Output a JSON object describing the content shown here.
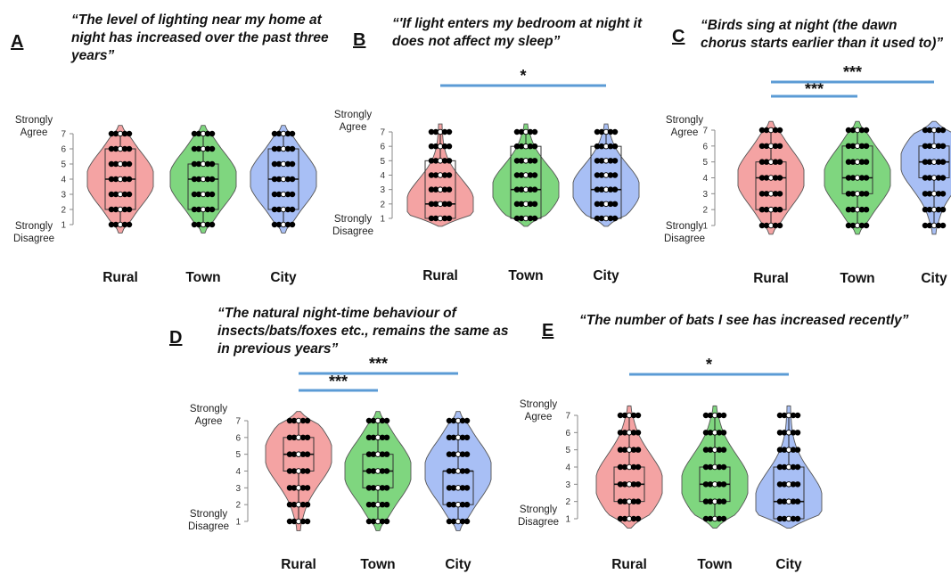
{
  "colors": {
    "rural": "#f4a3a3",
    "town": "#7fd67f",
    "city": "#a8bff5",
    "sig_line": "#5b9bd5"
  },
  "chart_data": [
    {
      "panel": "A",
      "type": "violin",
      "title": "“The level of lighting near my home at night has increased over the past three years”",
      "categories": [
        "Rural",
        "Town",
        "City"
      ],
      "ylabel_top": "Strongly Agree",
      "ylabel_bottom": "Strongly Disagree",
      "ylim": [
        1,
        7
      ],
      "yticks": [
        "1",
        "2",
        "3",
        "4",
        "5",
        "6",
        "7"
      ],
      "series": [
        {
          "category": "Rural",
          "whisker_low": 1,
          "q1": 2,
          "median": 4,
          "q3": 6,
          "whisker_high": 7
        },
        {
          "category": "Town",
          "whisker_low": 1,
          "q1": 2,
          "median": 4,
          "q3": 5,
          "whisker_high": 7
        },
        {
          "category": "City",
          "whisker_low": 1,
          "q1": 2,
          "median": 4,
          "q3": 6,
          "whisker_high": 7
        }
      ],
      "significance": []
    },
    {
      "panel": "B",
      "type": "violin",
      "title": "“'If light enters my bedroom at night it does not affect my sleep”",
      "categories": [
        "Rural",
        "Town",
        "City"
      ],
      "ylabel_top": "Strongly Agree",
      "ylabel_bottom": "Strongly Disagree",
      "ylim": [
        1,
        7
      ],
      "yticks": [
        "1",
        "2",
        "3",
        "4",
        "5",
        "6",
        "7"
      ],
      "series": [
        {
          "category": "Rural",
          "whisker_low": 1,
          "q1": 1,
          "median": 2,
          "q3": 5,
          "whisker_high": 7
        },
        {
          "category": "Town",
          "whisker_low": 1,
          "q1": 1,
          "median": 3,
          "q3": 6,
          "whisker_high": 7
        },
        {
          "category": "City",
          "whisker_low": 1,
          "q1": 1,
          "median": 3,
          "q3": 6,
          "whisker_high": 7
        }
      ],
      "significance": [
        {
          "from": "Rural",
          "to": "City",
          "label": "*"
        }
      ]
    },
    {
      "panel": "C",
      "type": "violin",
      "title": "“Birds sing at night (the dawn chorus starts earlier than it used to)”",
      "categories": [
        "Rural",
        "Town",
        "City"
      ],
      "ylabel_top": "Strongly Agree",
      "ylabel_bottom": "Strongly Disagree",
      "ylim": [
        1,
        7
      ],
      "yticks": [
        "1",
        "2",
        "3",
        "4",
        "5",
        "6",
        "7"
      ],
      "series": [
        {
          "category": "Rural",
          "whisker_low": 1,
          "q1": 2,
          "median": 4,
          "q3": 5,
          "whisker_high": 7
        },
        {
          "category": "Town",
          "whisker_low": 1,
          "q1": 3,
          "median": 4,
          "q3": 6,
          "whisker_high": 7
        },
        {
          "category": "City",
          "whisker_low": 1,
          "q1": 4,
          "median": 5,
          "q3": 6,
          "whisker_high": 7
        }
      ],
      "significance": [
        {
          "from": "Rural",
          "to": "Town",
          "label": "***"
        },
        {
          "from": "Rural",
          "to": "City",
          "label": "***"
        }
      ]
    },
    {
      "panel": "D",
      "type": "violin",
      "title": "“The natural night-time behaviour of insects/bats/foxes etc., remains the same as in previous years”",
      "categories": [
        "Rural",
        "Town",
        "City"
      ],
      "ylabel_top": "Strongly Agree",
      "ylabel_bottom": "Strongly Disagree",
      "ylim": [
        1,
        7
      ],
      "yticks": [
        "1",
        "2",
        "3",
        "4",
        "5",
        "6",
        "7"
      ],
      "series": [
        {
          "category": "Rural",
          "whisker_low": 1,
          "q1": 4,
          "median": 5,
          "q3": 6,
          "whisker_high": 7
        },
        {
          "category": "Town",
          "whisker_low": 1,
          "q1": 3,
          "median": 4,
          "q3": 5,
          "whisker_high": 7
        },
        {
          "category": "City",
          "whisker_low": 1,
          "q1": 2,
          "median": 4,
          "q3": 4,
          "whisker_high": 7
        }
      ],
      "significance": [
        {
          "from": "Rural",
          "to": "Town",
          "label": "***"
        },
        {
          "from": "Rural",
          "to": "City",
          "label": "***"
        }
      ]
    },
    {
      "panel": "E",
      "type": "violin",
      "title": "“The number of bats I see has increased recently”",
      "categories": [
        "Rural",
        "Town",
        "City"
      ],
      "ylabel_top": "Strongly Agree",
      "ylabel_bottom": "Strongly Disagree",
      "ylim": [
        1,
        7
      ],
      "yticks": [
        "1",
        "2",
        "3",
        "4",
        "5",
        "6",
        "7"
      ],
      "series": [
        {
          "category": "Rural",
          "whisker_low": 1,
          "q1": 2,
          "median": 3,
          "q3": 4,
          "whisker_high": 7
        },
        {
          "category": "Town",
          "whisker_low": 1,
          "q1": 2,
          "median": 3,
          "q3": 4,
          "whisker_high": 7
        },
        {
          "category": "City",
          "whisker_low": 1,
          "q1": 1,
          "median": 2,
          "q3": 4,
          "whisker_high": 7
        }
      ],
      "significance": [
        {
          "from": "Rural",
          "to": "City",
          "label": "*"
        }
      ]
    }
  ]
}
